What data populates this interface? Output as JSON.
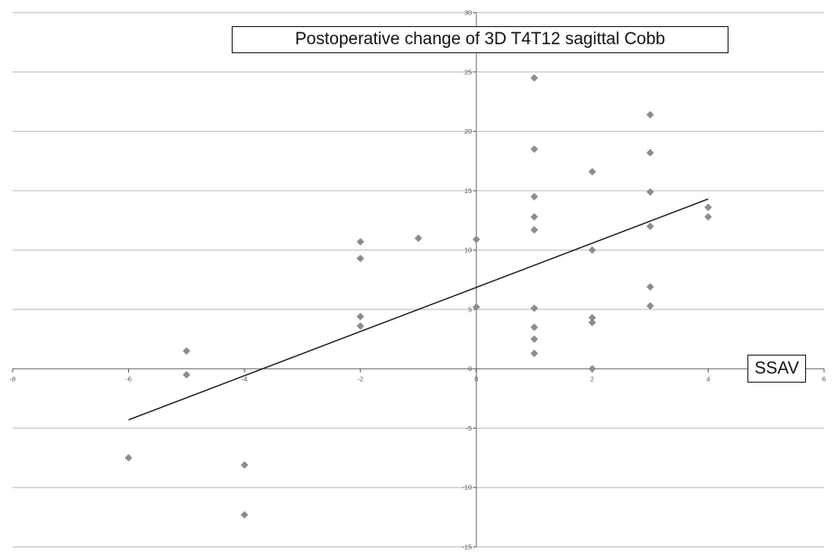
{
  "chart_data": {
    "type": "scatter",
    "title": "Postoperative change of 3D T4T12 sagittal Cobb",
    "xlabel": "SSAV",
    "ylabel": "",
    "xlim": [
      -8,
      6
    ],
    "ylim": [
      -15,
      30
    ],
    "x_ticks": [
      -8,
      -6,
      -4,
      -2,
      0,
      2,
      4,
      6
    ],
    "y_ticks": [
      -15,
      -10,
      -5,
      0,
      5,
      10,
      15,
      20,
      25,
      30
    ],
    "grid": "horizontal",
    "marker": "diamond",
    "colors": {
      "points": "#8c8c8c",
      "trendline": "#111111",
      "gridlines": "#c8c8c8"
    },
    "series": [
      {
        "points": [
          [
            -6,
            -7.5
          ],
          [
            -5,
            1.5
          ],
          [
            -5,
            -0.5
          ],
          [
            -4,
            -8.1
          ],
          [
            -4,
            -12.3
          ],
          [
            -2,
            10.7
          ],
          [
            -2,
            9.3
          ],
          [
            -2,
            4.4
          ],
          [
            -2,
            3.6
          ],
          [
            -1,
            11.0
          ],
          [
            0,
            10.9
          ],
          [
            0,
            5.2
          ],
          [
            1,
            24.5
          ],
          [
            1,
            18.5
          ],
          [
            1,
            14.5
          ],
          [
            1,
            12.8
          ],
          [
            1,
            11.7
          ],
          [
            1,
            5.1
          ],
          [
            1,
            3.5
          ],
          [
            1,
            2.5
          ],
          [
            1,
            1.3
          ],
          [
            2,
            16.6
          ],
          [
            2,
            10.0
          ],
          [
            2,
            4.3
          ],
          [
            2,
            3.9
          ],
          [
            2,
            0.0
          ],
          [
            3,
            21.4
          ],
          [
            3,
            18.2
          ],
          [
            3,
            14.9
          ],
          [
            3,
            12.0
          ],
          [
            3,
            6.9
          ],
          [
            3,
            5.3
          ],
          [
            4,
            13.6
          ],
          [
            4,
            12.8
          ]
        ]
      }
    ],
    "trendline": {
      "x": [
        -6,
        4
      ],
      "y": [
        -4.3,
        14.3
      ]
    }
  }
}
